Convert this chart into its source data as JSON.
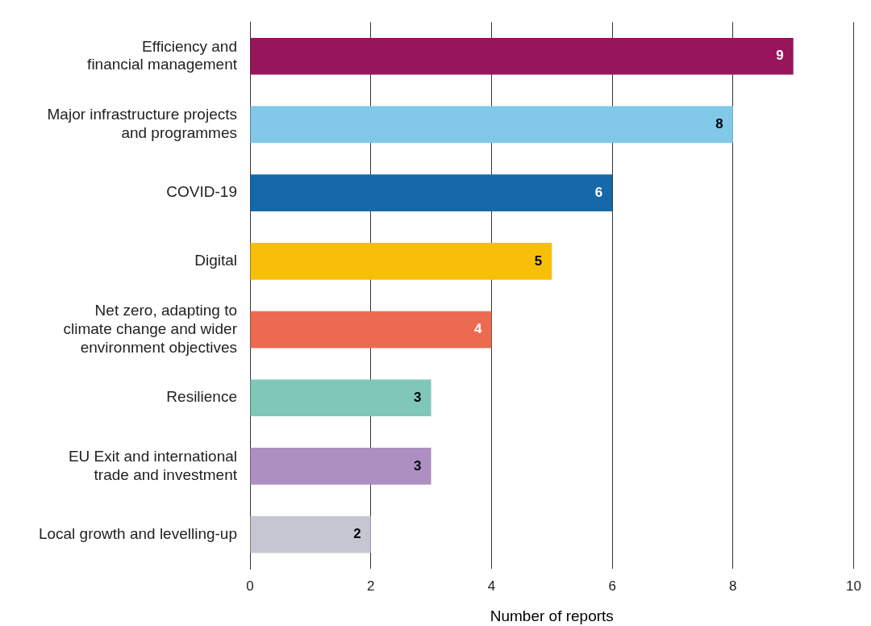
{
  "chart_data": {
    "type": "bar",
    "orientation": "horizontal",
    "xlabel": "Number of reports",
    "categories": [
      "Efficiency and\nfinancial management",
      "Major infrastructure projects\nand programmes",
      "COVID-19",
      "Digital",
      "Net zero, adapting to\nclimate change and wider\nenvironment objectives",
      "Resilience",
      "EU Exit and international\ntrade and investment",
      "Local growth and levelling-up"
    ],
    "values": [
      9,
      8,
      6,
      5,
      4,
      3,
      3,
      2
    ],
    "colors": [
      "#97155a",
      "#82c8e8",
      "#1569a8",
      "#f8bf08",
      "#ec6b50",
      "#7fc7b8",
      "#ad8fc1",
      "#c6c6d2"
    ],
    "xlim": [
      0,
      10
    ],
    "xticks": [
      0,
      2,
      4,
      6,
      8,
      10
    ],
    "grid": "x",
    "data_labels": true,
    "legend": false
  }
}
